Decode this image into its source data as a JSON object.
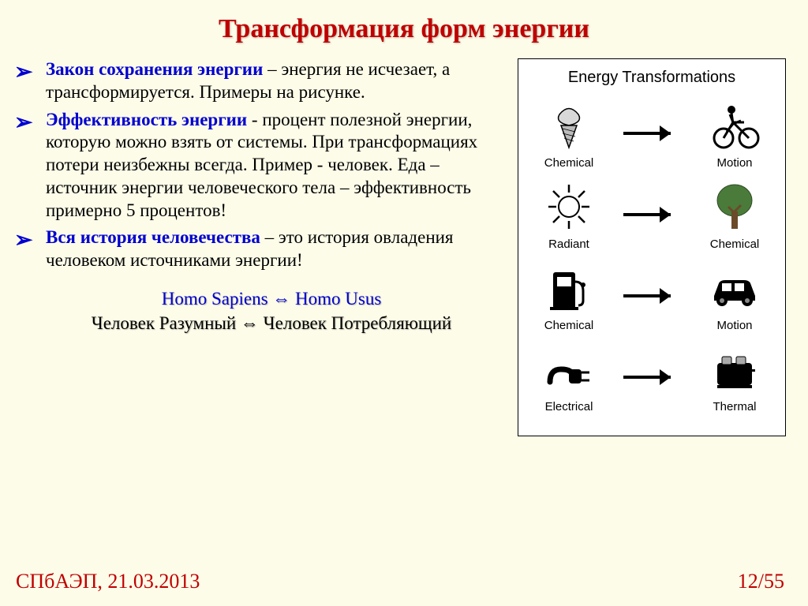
{
  "title": "Трансформация форм энергии",
  "bullets": [
    {
      "lead": "Закон сохранения энергии",
      "rest": " – энергия не исчезает, а трансформируется. Примеры на рисунке."
    },
    {
      "lead": "Эффективность энергии ",
      "rest": " - процент полезной энергии, которую можно взять от системы. При трансформациях потери неизбежны всегда. Пример - человек. Еда – источник энергии человеческого тела – эффективность примерно 5 процентов!"
    },
    {
      "lead": "Вся история человечества",
      "rest": " – это история овладения человеком источниками энергии!"
    }
  ],
  "species": {
    "latin": "Homo Sapiens  ⇔  Homo Usus",
    "rus": "Человек Разумный  ⇔  Человек Потребляющий"
  },
  "diagram": {
    "title": "Energy Transformations",
    "rows": [
      {
        "from": "Chemical",
        "to": "Motion",
        "from_icon": "icecream",
        "to_icon": "cyclist"
      },
      {
        "from": "Radiant",
        "to": "Chemical",
        "from_icon": "sun",
        "to_icon": "tree"
      },
      {
        "from": "Chemical",
        "to": "Motion",
        "from_icon": "gaspump",
        "to_icon": "car"
      },
      {
        "from": "Electrical",
        "to": "Thermal",
        "from_icon": "plug",
        "to_icon": "toaster"
      }
    ],
    "arrow_color": "#000000",
    "tree_foliage": "#4a7b3a",
    "tree_trunk": "#6b4a2a"
  },
  "footer": {
    "left": "СПбАЭП, 21.03.2013",
    "right": "12/55"
  },
  "colors": {
    "page_bg": "#fdfce9",
    "title": "#c00000",
    "accent": "#0000d0",
    "text": "#000000",
    "diagram_bg": "#ffffff"
  }
}
